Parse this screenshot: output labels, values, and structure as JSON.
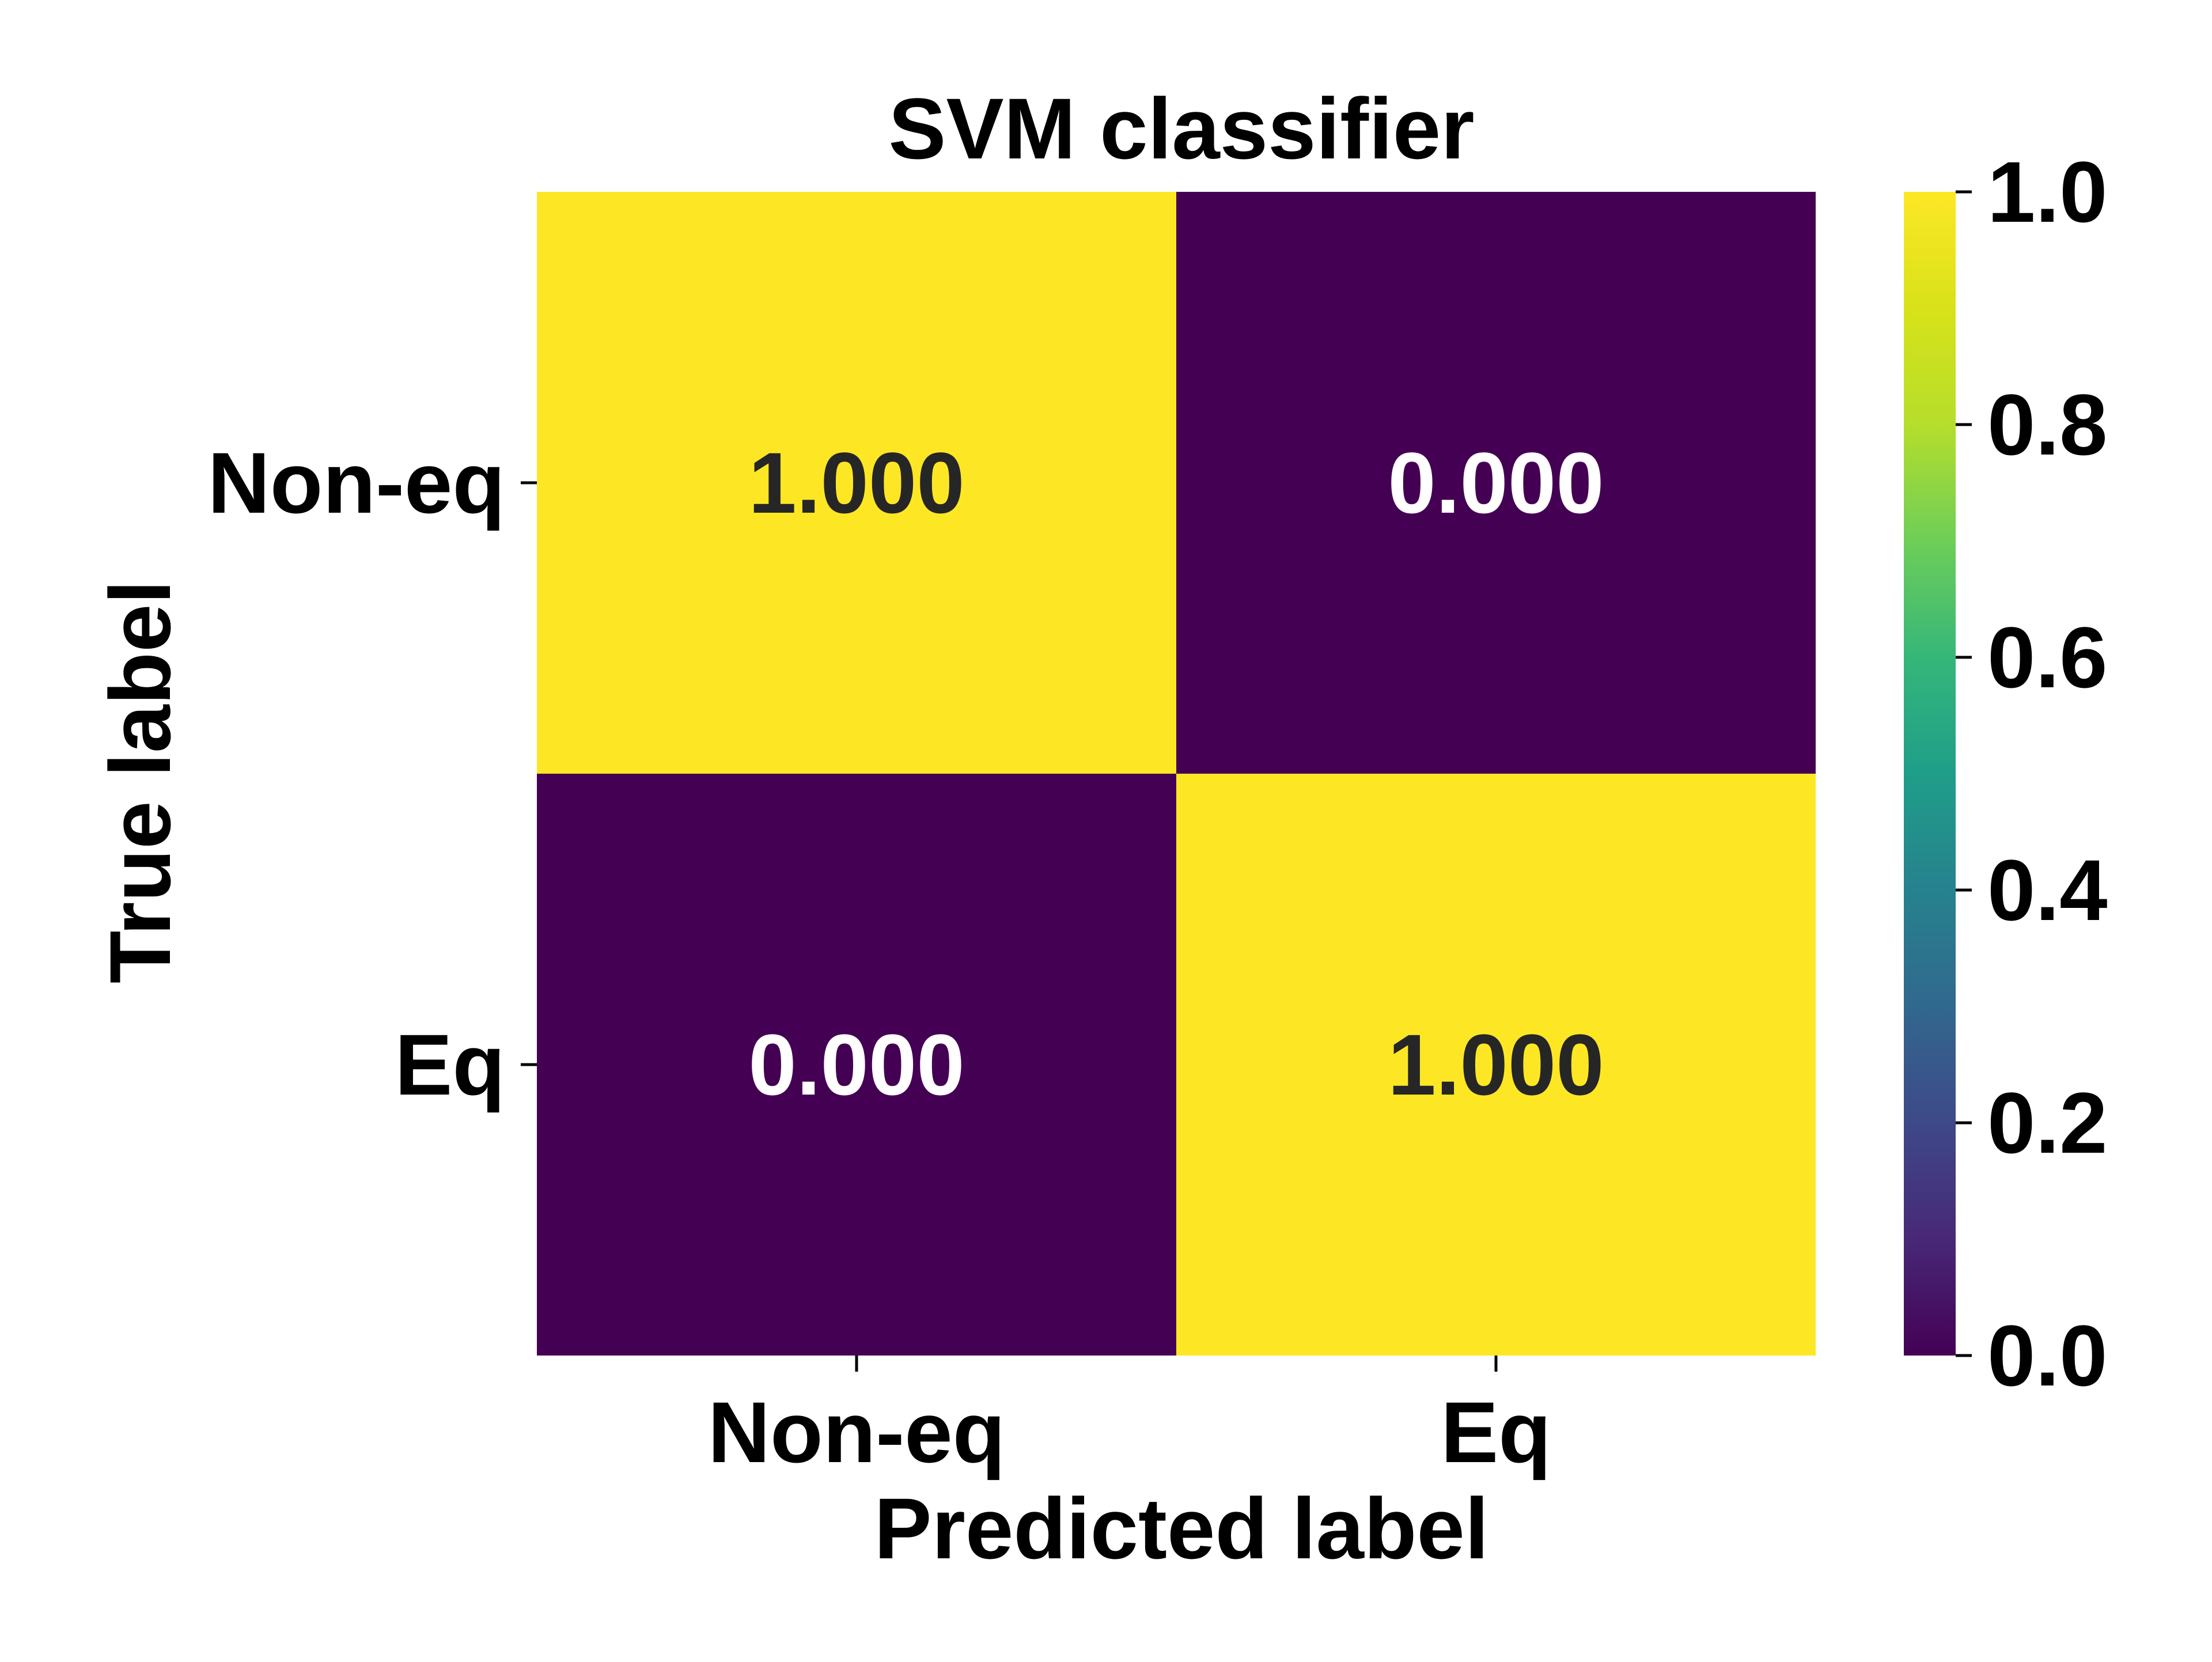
{
  "chart_data": {
    "type": "heatmap",
    "title": "SVM classifier",
    "xlabel": "Predicted label",
    "ylabel": "True label",
    "x_categories": [
      "Non-eq",
      "Eq"
    ],
    "y_categories": [
      "Non-eq",
      "Eq"
    ],
    "values": [
      [
        1.0,
        0.0
      ],
      [
        0.0,
        1.0
      ]
    ],
    "cell_labels": [
      [
        "1.000",
        "0.000"
      ],
      [
        "0.000",
        "1.000"
      ]
    ],
    "colorbar": {
      "colormap": "viridis",
      "range": [
        0.0,
        1.0
      ],
      "ticks": [
        "0.0",
        "0.2",
        "0.4",
        "0.6",
        "0.8",
        "1.0"
      ],
      "tick_values": [
        0.0,
        0.2,
        0.4,
        0.6,
        0.8,
        1.0
      ]
    },
    "colors": {
      "high": "#fde725",
      "low": "#440154",
      "text_on_high": "#262626",
      "text_on_low": "#ffffff"
    }
  }
}
